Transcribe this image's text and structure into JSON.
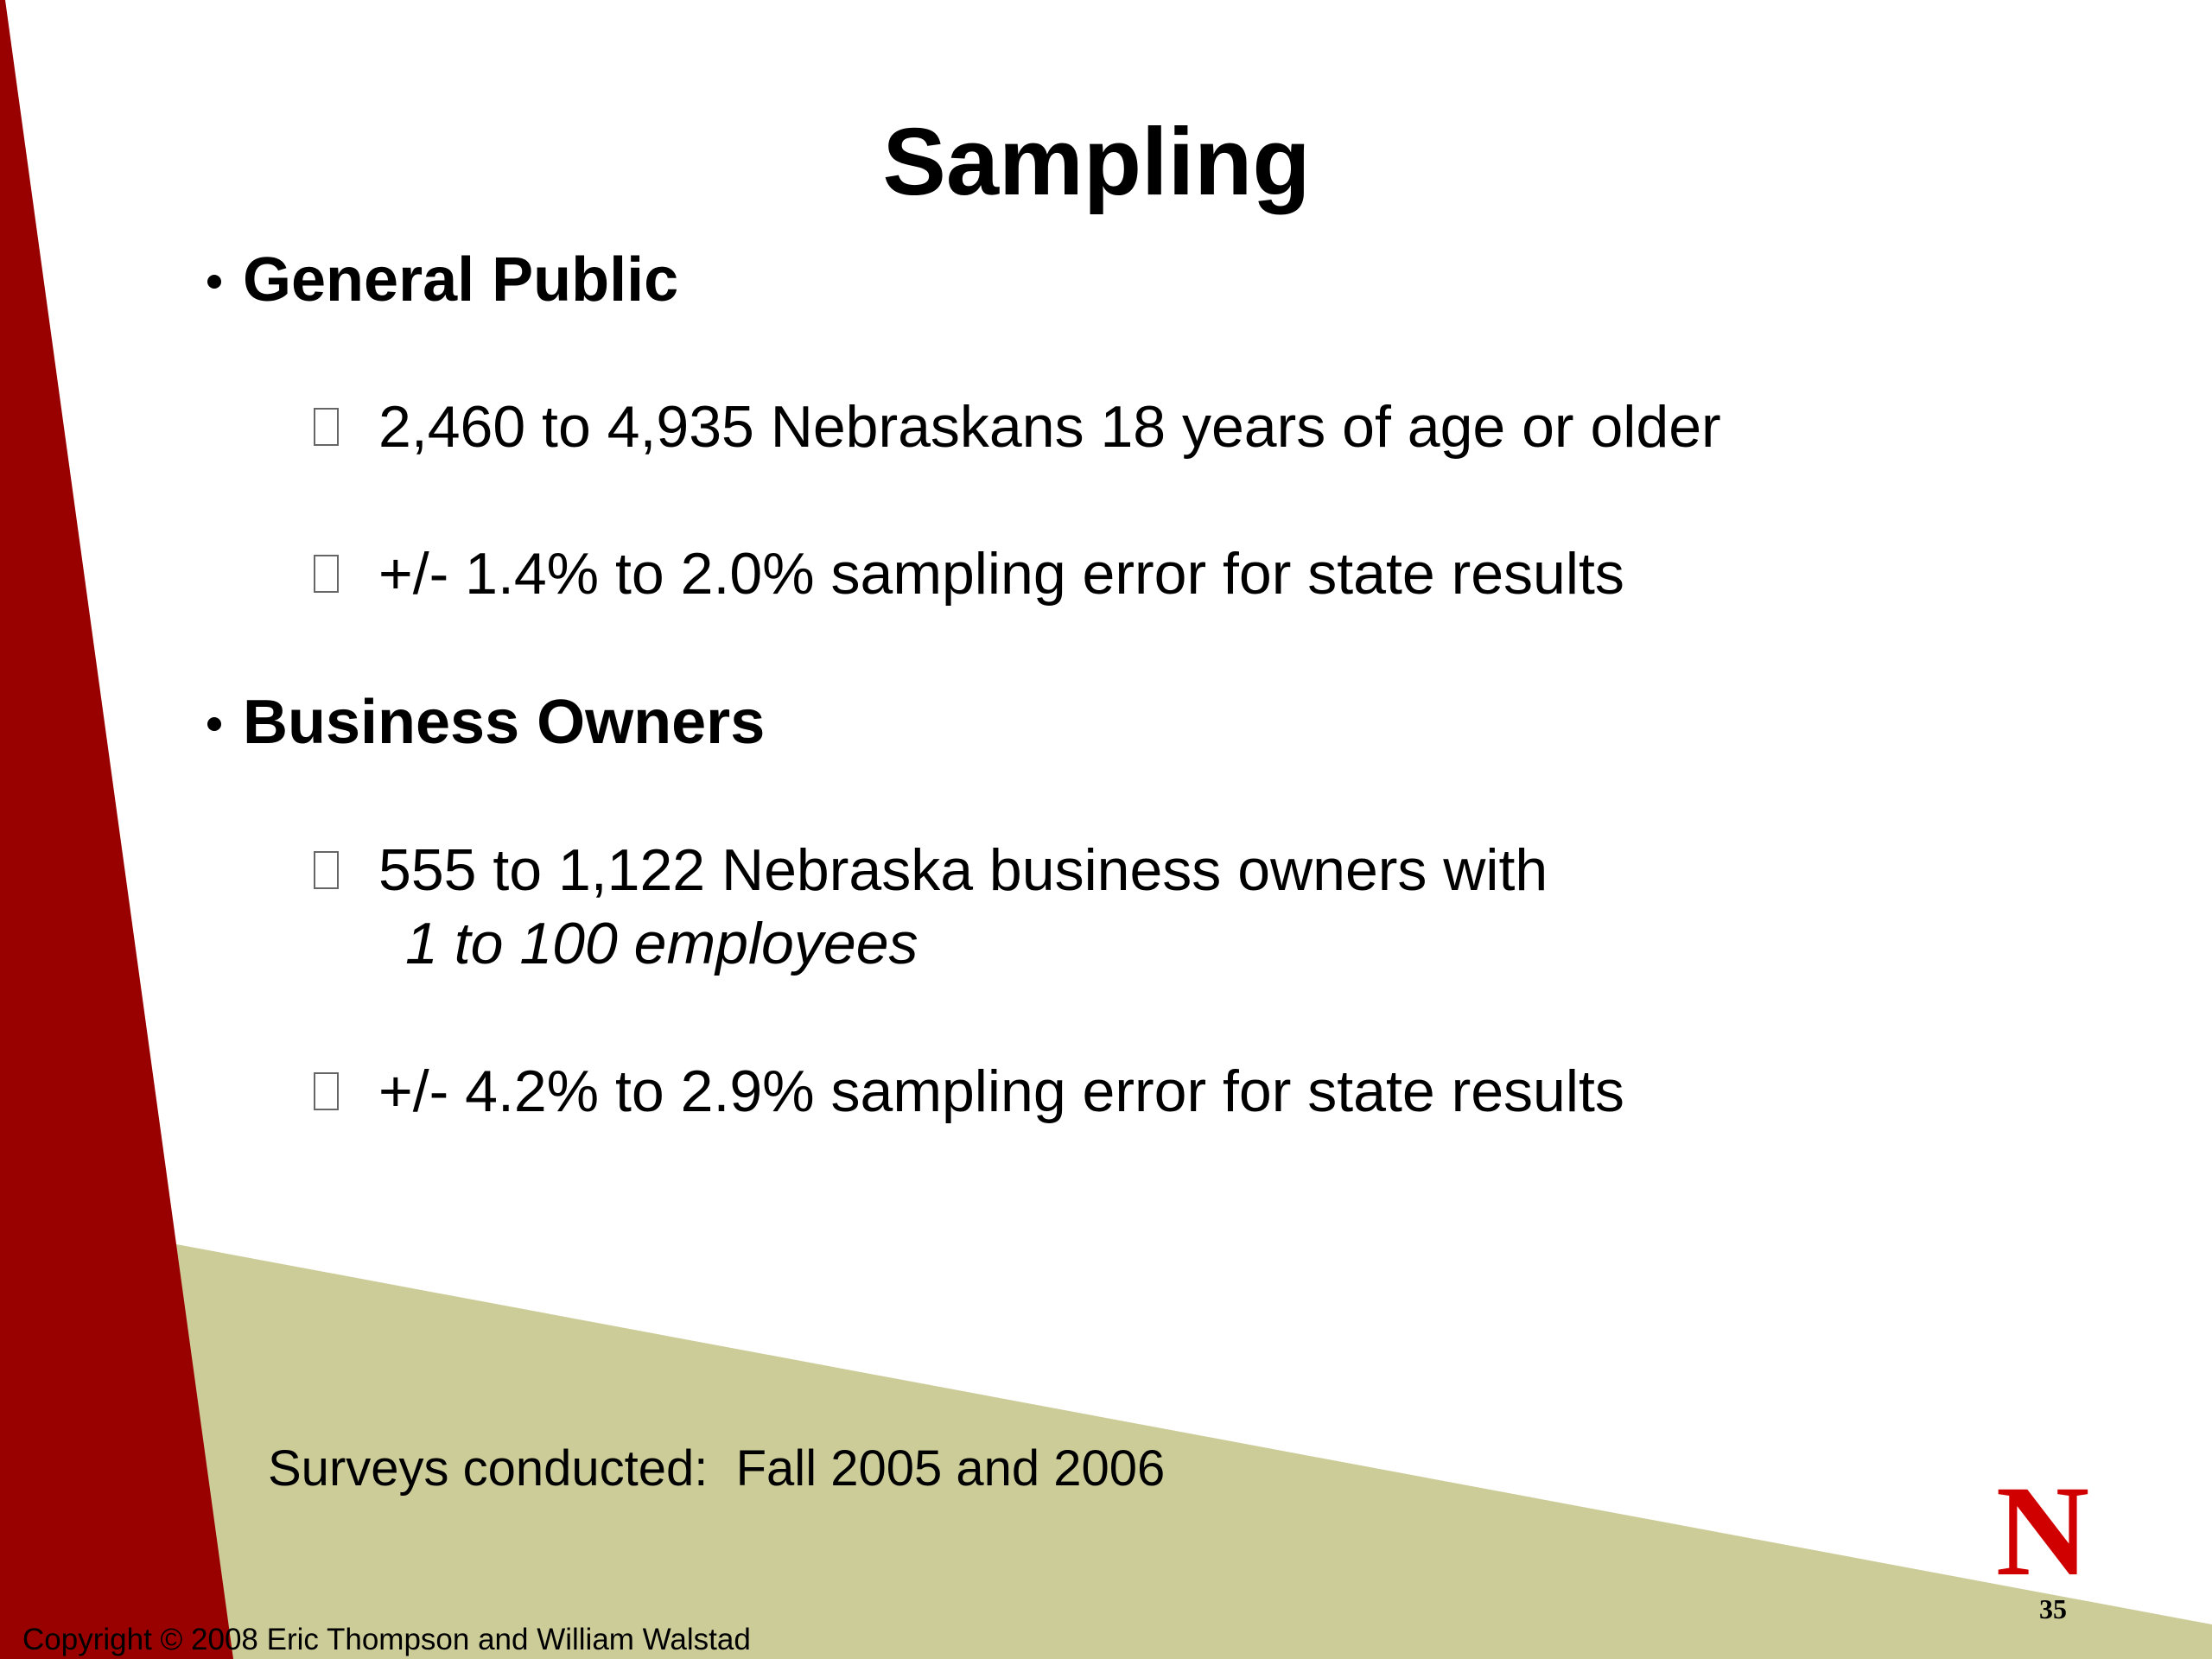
{
  "slide": {
    "title": "Sampling",
    "sections": [
      {
        "heading": "General Public",
        "items": [
          {
            "text": "2,460 to 4,935 Nebraskans 18 years of age or older"
          },
          {
            "text": "+/- 1.4% to 2.0% sampling error for state results"
          }
        ]
      },
      {
        "heading": "Business Owners",
        "items": [
          {
            "text": "555 to 1,122 Nebraska business owners with",
            "continuation": "1 to 100 employees"
          },
          {
            "text": "+/- 4.2% to 2.9% sampling error for state results"
          }
        ]
      }
    ],
    "footnote": "Surveys conducted:  Fall 2005 and 2006",
    "copyright": "Copyright © 2008 Eric Thompson and William Walstad",
    "logo": "N",
    "page_number": "35"
  }
}
